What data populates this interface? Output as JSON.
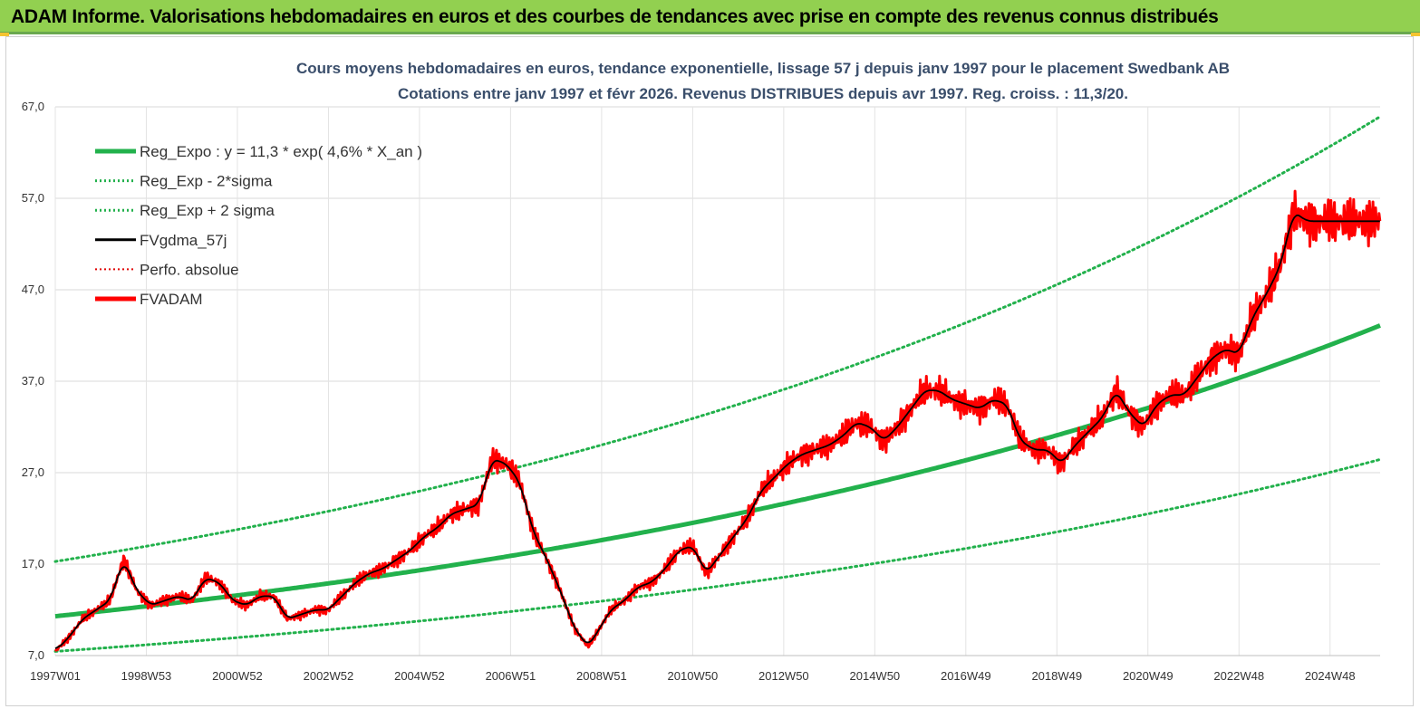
{
  "banner": {
    "title": "ADAM Informe. Valorisations hebdomadaires en euros et des courbes de tendances avec prise en compte des revenus connus distribués"
  },
  "chart_data": {
    "type": "line",
    "title": [
      "Cours moyens hebdomadaires en euros, tendance exponentielle, lissage 57 j depuis janv 1997 pour le placement Swedbank AB",
      "Cotations entre janv 1997 et févr 2026. Revenus DISTRIBUES depuis avr 1997. Reg. croiss. : 11,3/20."
    ],
    "xlabel": "",
    "ylabel": "",
    "x_range": [
      1997.0,
      2026.1
    ],
    "ylim": [
      7,
      67
    ],
    "y_ticks": [
      7,
      17,
      27,
      37,
      47,
      57,
      67
    ],
    "y_tick_labels": [
      "7,0",
      "17,0",
      "27,0",
      "37,0",
      "47,0",
      "57,0",
      "67,0"
    ],
    "x_ticks": [
      1997.0,
      1999.0,
      2001.0,
      2003.0,
      2005.0,
      2007.0,
      2009.0,
      2011.0,
      2013.0,
      2015.0,
      2017.0,
      2019.0,
      2021.0,
      2023.0,
      2025.0
    ],
    "x_tick_labels": [
      "1997W01",
      "1998W53",
      "2000W52",
      "2002W52",
      "2004W52",
      "2006W51",
      "2008W51",
      "2010W50",
      "2012W50",
      "2014W50",
      "2016W49",
      "2018W49",
      "2020W49",
      "2022W48",
      "2024W48"
    ],
    "grid": true,
    "legend_position": "top-left",
    "regression": {
      "a": 11.3,
      "growth_rate": 0.046,
      "lower_band_factor": 0.66,
      "upper_band_factor": 1.53
    },
    "series": [
      {
        "name": "Reg_Expo : y = 11,3 * exp( 4,6% *  X_an )",
        "color": "#22b14c",
        "style": "solid-thick",
        "kind": "regression"
      },
      {
        "name": "Reg_Exp - 2*sigma",
        "color": "#22b14c",
        "style": "dotted",
        "kind": "lower"
      },
      {
        "name": "Reg_Exp + 2 sigma",
        "color": "#22b14c",
        "style": "dotted",
        "kind": "upper"
      },
      {
        "name": "FVgdma_57j",
        "color": "#000000",
        "style": "solid",
        "kind": "smoothed"
      },
      {
        "name": "Perfo. absolue",
        "color": "#e00000",
        "style": "dotted",
        "kind": "hidden"
      },
      {
        "name": "FVADAM",
        "color": "#ff0000",
        "style": "solid-thick",
        "kind": "price",
        "x": [
          1997.0,
          1997.3,
          1997.6,
          1997.9,
          1998.2,
          1998.5,
          1998.8,
          1999.1,
          1999.4,
          1999.7,
          2000.0,
          2000.3,
          2000.6,
          2000.9,
          2001.2,
          2001.5,
          2001.8,
          2002.1,
          2002.4,
          2002.7,
          2003.0,
          2003.3,
          2003.6,
          2003.9,
          2004.2,
          2004.5,
          2004.8,
          2005.1,
          2005.4,
          2005.7,
          2006.0,
          2006.3,
          2006.6,
          2006.9,
          2007.2,
          2007.5,
          2007.8,
          2008.1,
          2008.4,
          2008.7,
          2008.9,
          2009.2,
          2009.5,
          2009.8,
          2010.1,
          2010.4,
          2010.7,
          2011.0,
          2011.3,
          2011.6,
          2011.9,
          2012.2,
          2012.5,
          2012.8,
          2013.1,
          2013.4,
          2013.7,
          2014.0,
          2014.3,
          2014.6,
          2014.9,
          2015.2,
          2015.5,
          2015.8,
          2016.1,
          2016.4,
          2016.7,
          2017.0,
          2017.3,
          2017.6,
          2017.9,
          2018.2,
          2018.5,
          2018.8,
          2019.1,
          2019.4,
          2019.7,
          2020.0,
          2020.3,
          2020.6,
          2020.9,
          2021.2,
          2021.5,
          2021.8,
          2022.1,
          2022.4,
          2022.7,
          2023.0,
          2023.3,
          2023.6,
          2023.9,
          2024.2,
          2024.5,
          2024.8,
          2025.1,
          2025.4,
          2025.7,
          2026.0,
          2026.1
        ],
        "values": [
          7.5,
          9.0,
          11.0,
          12.0,
          13.0,
          17.5,
          14.0,
          12.5,
          13.0,
          13.5,
          13.0,
          15.5,
          15.0,
          13.0,
          12.5,
          13.5,
          13.5,
          11.0,
          11.5,
          12.0,
          12.0,
          13.5,
          15.0,
          16.0,
          16.5,
          17.5,
          18.5,
          20.0,
          21.0,
          22.5,
          23.0,
          23.5,
          28.5,
          28.0,
          26.0,
          20.5,
          17.5,
          14.0,
          10.0,
          8.0,
          9.5,
          12.0,
          13.0,
          14.5,
          15.0,
          16.5,
          18.5,
          19.0,
          16.0,
          18.0,
          20.0,
          22.0,
          25.0,
          26.5,
          28.0,
          29.0,
          29.5,
          30.0,
          31.0,
          32.5,
          32.0,
          30.5,
          32.0,
          34.0,
          36.0,
          36.0,
          35.0,
          34.5,
          34.0,
          35.0,
          34.5,
          30.5,
          29.5,
          29.5,
          28.0,
          30.0,
          31.5,
          33.0,
          36.0,
          33.5,
          32.0,
          34.5,
          35.5,
          35.5,
          37.5,
          39.5,
          40.5,
          40.0,
          44.0,
          46.5,
          49.5,
          55.5,
          54.5,
          54.5,
          54.5,
          54.5,
          54.5,
          54.5,
          54.5
        ]
      }
    ]
  }
}
